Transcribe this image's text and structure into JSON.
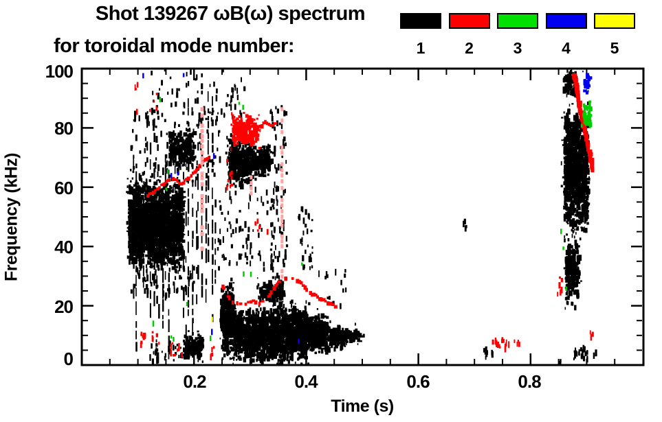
{
  "chart_data": {
    "type": "scatter",
    "title": "Shot 139267 ωB(ω) spectrum",
    "subtitle": "for toroidal mode number:",
    "xlabel": "Time (s)",
    "ylabel": "Frequency (kHz)",
    "xlim": [
      0,
      1.0
    ],
    "ylim": [
      0,
      100
    ],
    "x_minor_step": 0.05,
    "y_minor_step": 5,
    "grid": false,
    "x_ticks": [
      {
        "t": 0.2,
        "label": "0.2"
      },
      {
        "t": 0.4,
        "label": "0.4"
      },
      {
        "t": 0.6,
        "label": "0.6"
      },
      {
        "t": 0.8,
        "label": "0.8"
      }
    ],
    "y_ticks": [
      {
        "f": 100,
        "label": "100"
      },
      {
        "f": 80,
        "label": "80"
      },
      {
        "f": 60,
        "label": "60"
      },
      {
        "f": 40,
        "label": "40"
      },
      {
        "f": 20,
        "label": "20"
      },
      {
        "f": 0,
        "label": "0"
      }
    ],
    "legend": {
      "position": "top-right",
      "entries": [
        {
          "label": "1",
          "color": "#000000"
        },
        {
          "label": "2",
          "color": "#ff0000"
        },
        {
          "label": "3",
          "color": "#00e000"
        },
        {
          "label": "4",
          "color": "#0000f0"
        },
        {
          "label": "5",
          "color": "#ffff00"
        }
      ]
    },
    "mode_colors": {
      "1": "#000000",
      "2": "#ff0000",
      "3": "#00cc00",
      "4": "#0000ee",
      "5": "#ffff00"
    },
    "pale_red": "#ffa3a3",
    "features": [
      {
        "mode": 1,
        "type": "blob",
        "t": [
          0.082,
          0.178
        ],
        "f": [
          33,
          63
        ],
        "density": 0.85
      },
      {
        "mode": 1,
        "type": "streaks",
        "t": [
          0.088,
          0.24
        ],
        "count": 26,
        "f_top": [
          52,
          97
        ],
        "f_bot": [
          0,
          34
        ]
      },
      {
        "mode": 1,
        "type": "blob",
        "t": [
          0.154,
          0.198
        ],
        "f": [
          68,
          80
        ],
        "density": 0.5
      },
      {
        "mode": 1,
        "type": "specks",
        "t": [
          0.12,
          0.29
        ],
        "f": [
          84,
          100
        ],
        "count": 70
      },
      {
        "mode": 1,
        "type": "specks",
        "t": [
          0.085,
          0.245
        ],
        "f": [
          62,
          86
        ],
        "count": 110
      },
      {
        "mode": 1,
        "type": "specks",
        "t": [
          0.085,
          0.2
        ],
        "f": [
          24,
          34
        ],
        "count": 60
      },
      {
        "mode": 1,
        "type": "blob",
        "t": [
          0.26,
          0.301
        ],
        "f": [
          61,
          77
        ],
        "density": 0.75
      },
      {
        "mode": 1,
        "type": "blob",
        "t": [
          0.303,
          0.332
        ],
        "f": [
          64,
          75
        ],
        "density": 0.65
      },
      {
        "mode": 1,
        "type": "specks",
        "t": [
          0.24,
          0.35
        ],
        "f": [
          33,
          61
        ],
        "count": 80
      },
      {
        "mode": 1,
        "type": "blob",
        "t": [
          0.18,
          0.213
        ],
        "f": [
          2.5,
          10.5
        ],
        "density": 0.8
      },
      {
        "mode": 1,
        "type": "specks",
        "t": [
          0.12,
          0.18
        ],
        "f": [
          2,
          9
        ],
        "count": 25
      },
      {
        "mode": 1,
        "type": "blob",
        "t": [
          0.246,
          0.268
        ],
        "f": [
          4,
          29
        ],
        "density": 0.85
      },
      {
        "mode": 1,
        "type": "blob",
        "t": [
          0.268,
          0.295
        ],
        "f": [
          2,
          20
        ],
        "density": 0.85
      },
      {
        "mode": 1,
        "type": "blob",
        "t": [
          0.295,
          0.37
        ],
        "f": [
          1.5,
          20.5
        ],
        "density": 0.85
      },
      {
        "mode": 1,
        "type": "blob",
        "t": [
          0.316,
          0.358
        ],
        "f": [
          21,
          29
        ],
        "density": 0.6
      },
      {
        "mode": 1,
        "type": "blob",
        "t": [
          0.37,
          0.4
        ],
        "f": [
          2,
          21
        ],
        "density": 0.85
      },
      {
        "mode": 1,
        "type": "blob",
        "t": [
          0.4,
          0.435
        ],
        "f": [
          4,
          18
        ],
        "density": 0.8
      },
      {
        "mode": 1,
        "type": "blob",
        "t": [
          0.435,
          0.468
        ],
        "f": [
          6,
          14
        ],
        "density": 0.65
      },
      {
        "mode": 1,
        "type": "blob",
        "t": [
          0.468,
          0.497
        ],
        "f": [
          8,
          13
        ],
        "density": 0.5
      },
      {
        "mode": 1,
        "type": "specks",
        "t": [
          0.335,
          0.365
        ],
        "f": [
          30,
          88
        ],
        "count": 90
      },
      {
        "mode": 1,
        "type": "specks",
        "t": [
          0.385,
          0.41
        ],
        "f": [
          33,
          54
        ],
        "count": 28
      },
      {
        "mode": 1,
        "type": "specks",
        "t": [
          0.42,
          0.47
        ],
        "f": [
          20,
          33
        ],
        "count": 14
      },
      {
        "mode": 1,
        "type": "specks",
        "t": [
          0.678,
          0.685
        ],
        "f": [
          47,
          50
        ],
        "count": 4
      },
      {
        "mode": 1,
        "type": "specks",
        "t": [
          0.71,
          0.735
        ],
        "f": [
          3,
          6.5
        ],
        "count": 8
      },
      {
        "mode": 1,
        "type": "blob",
        "t": [
          0.857,
          0.878
        ],
        "f": [
          91,
          99.5
        ],
        "density": 0.6
      },
      {
        "mode": 1,
        "type": "blob",
        "t": [
          0.858,
          0.9
        ],
        "f": [
          45,
          88
        ],
        "density": 0.75
      },
      {
        "mode": 1,
        "type": "blob",
        "t": [
          0.861,
          0.884
        ],
        "f": [
          20,
          45
        ],
        "density": 0.5
      },
      {
        "mode": 1,
        "type": "specks",
        "t": [
          0.873,
          0.915
        ],
        "f": [
          2.5,
          7
        ],
        "count": 24
      },
      {
        "mode": 1,
        "type": "specks",
        "t": [
          0.848,
          0.853
        ],
        "f": [
          0.5,
          3
        ],
        "count": 3
      },
      {
        "mode": 2,
        "type": "trace",
        "thickness": 4,
        "gap": 0.25,
        "points": [
          [
            0.112,
            57.5
          ],
          [
            0.125,
            59
          ],
          [
            0.14,
            61
          ],
          [
            0.155,
            63.5
          ],
          [
            0.165,
            63
          ],
          [
            0.175,
            61.5
          ],
          [
            0.19,
            64
          ],
          [
            0.205,
            67
          ],
          [
            0.218,
            70
          ],
          [
            0.228,
            71
          ]
        ]
      },
      {
        "mode": 2,
        "type": "blob",
        "t": [
          0.267,
          0.312
        ],
        "f": [
          74.5,
          85
        ],
        "density": 0.6
      },
      {
        "mode": 2,
        "type": "trace",
        "thickness": 4,
        "gap": 0.3,
        "points": [
          [
            0.315,
            81
          ],
          [
            0.325,
            82.5
          ],
          [
            0.335,
            81
          ],
          [
            0.345,
            82
          ]
        ]
      },
      {
        "mode": 2,
        "type": "trace",
        "thickness": 4,
        "gap": 0.3,
        "points": [
          [
            0.249,
            27
          ],
          [
            0.256,
            24
          ],
          [
            0.263,
            22.3
          ],
          [
            0.275,
            21.3
          ],
          [
            0.29,
            21.2
          ],
          [
            0.303,
            22
          ],
          [
            0.315,
            21.6
          ],
          [
            0.328,
            23
          ],
          [
            0.34,
            26.5
          ],
          [
            0.352,
            29.3
          ],
          [
            0.365,
            30
          ],
          [
            0.378,
            29.8
          ],
          [
            0.392,
            27.5
          ],
          [
            0.405,
            25
          ],
          [
            0.418,
            23.5
          ],
          [
            0.432,
            22
          ],
          [
            0.445,
            20.8
          ],
          [
            0.458,
            19.8
          ]
        ]
      },
      {
        "mode": 2,
        "type": "specks",
        "t": [
          0.1,
          0.14
        ],
        "f": [
          7.5,
          12.5
        ],
        "count": 14
      },
      {
        "mode": 2,
        "type": "specks",
        "t": [
          0.155,
          0.178
        ],
        "f": [
          3.5,
          8
        ],
        "count": 10
      },
      {
        "mode": 2,
        "type": "specks",
        "t": [
          0.228,
          0.235
        ],
        "f": [
          3,
          6.5
        ],
        "count": 5
      },
      {
        "mode": 2,
        "type": "specks",
        "t": [
          0.09,
          0.142
        ],
        "f": [
          85,
          97
        ],
        "count": 8
      },
      {
        "mode": 2,
        "type": "specks",
        "t": [
          0.255,
          0.268
        ],
        "f": [
          60,
          70
        ],
        "count": 8
      },
      {
        "mode": 2,
        "type": "specks",
        "t": [
          0.3,
          0.33
        ],
        "f": [
          44,
          50
        ],
        "count": 6
      },
      {
        "mode": 2,
        "type": "specks",
        "t": [
          0.726,
          0.762
        ],
        "f": [
          6.2,
          9.8
        ],
        "count": 16
      },
      {
        "mode": 2,
        "type": "specks",
        "t": [
          0.77,
          0.786
        ],
        "f": [
          7,
          9
        ],
        "count": 5
      },
      {
        "mode": 2,
        "type": "trace",
        "thickness": 6,
        "gap": 0.15,
        "points": [
          [
            0.873,
            99.5
          ],
          [
            0.877,
            96
          ],
          [
            0.881,
            91
          ],
          [
            0.885,
            86.5
          ],
          [
            0.889,
            83.5
          ],
          [
            0.893,
            80
          ],
          [
            0.897,
            76.5
          ],
          [
            0.901,
            72.5
          ],
          [
            0.905,
            69
          ],
          [
            0.908,
            66
          ]
        ]
      },
      {
        "mode": 2,
        "type": "specks",
        "t": [
          0.905,
          0.911
        ],
        "f": [
          8.5,
          12
        ],
        "count": 4
      },
      {
        "mode": 2,
        "type": "specks",
        "t": [
          0.846,
          0.856
        ],
        "f": [
          23,
          33
        ],
        "count": 6
      },
      {
        "mode": 3,
        "type": "points",
        "points": [
          [
            0.138,
            90.5
          ],
          [
            0.279,
            88.8
          ],
          [
            0.286,
            87.8
          ],
          [
            0.152,
            66
          ],
          [
            0.149,
            59.8
          ],
          [
            0.3,
            31.5
          ],
          [
            0.126,
            15
          ],
          [
            0.158,
            10
          ],
          [
            0.162,
            9.5
          ],
          [
            0.186,
            21.3
          ],
          [
            0.228,
            9.9
          ],
          [
            0.287,
            31.6
          ],
          [
            0.391,
            34.6
          ],
          [
            0.853,
            46
          ],
          [
            0.857,
            40
          ],
          [
            0.862,
            26.5
          ]
        ]
      },
      {
        "mode": 3,
        "type": "blob",
        "t": [
          0.892,
          0.905
        ],
        "f": [
          80,
          90
        ],
        "density": 0.45
      },
      {
        "mode": 4,
        "type": "points",
        "points": [
          [
            0.108,
            98.5
          ],
          [
            0.18,
            98.5
          ],
          [
            0.234,
            71.5
          ],
          [
            0.158,
            64.8
          ],
          [
            0.17,
            65.5
          ],
          [
            0.2304,
            12.2
          ],
          [
            0.385,
            8.8
          ]
        ]
      },
      {
        "mode": 4,
        "type": "blob",
        "t": [
          0.893,
          0.903
        ],
        "f": [
          92,
          99
        ],
        "density": 0.4
      },
      {
        "mode": 5,
        "type": "points",
        "points": [
          [
            0.2304,
            15.6
          ],
          [
            0.2308,
            16.3
          ]
        ]
      },
      {
        "mode": 2,
        "type": "vline",
        "t": 0.2145,
        "f": [
          33,
          87
        ],
        "width": 5,
        "pale": true
      },
      {
        "mode": 2,
        "type": "vline",
        "t": 0.357,
        "f": [
          30,
          87
        ],
        "width": 4,
        "pale": true
      },
      {
        "mode": 2,
        "type": "vline",
        "t": 0.302,
        "f": [
          57,
          64
        ],
        "width": 4,
        "pale": true
      }
    ]
  }
}
